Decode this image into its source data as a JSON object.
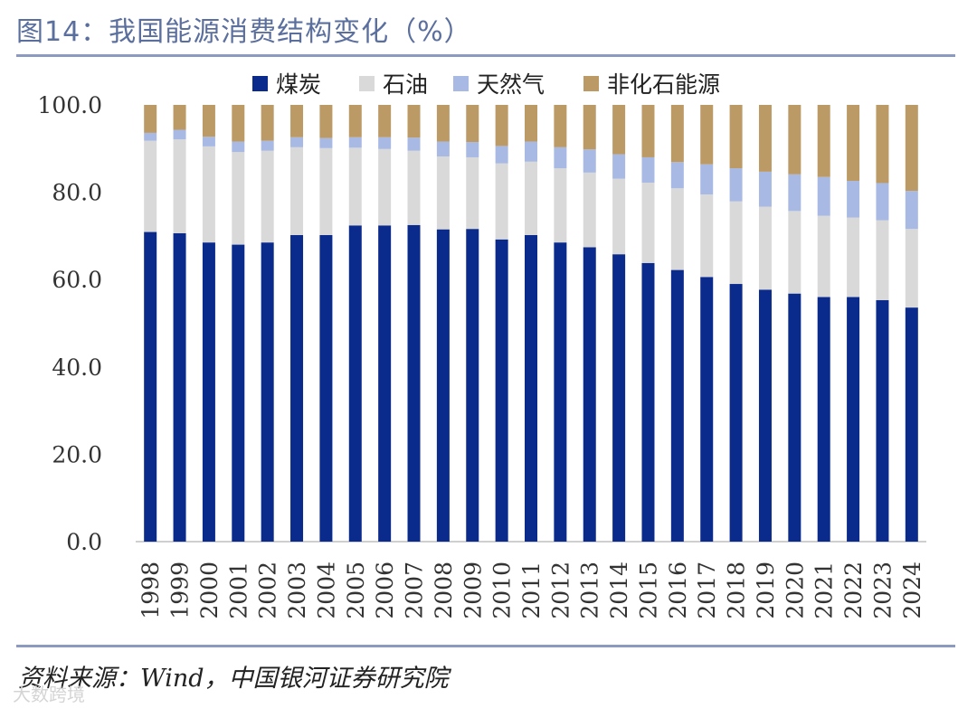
{
  "title": "图14：我国能源消费结构变化（%）",
  "source": "资料来源：Wind，中国银河证券研究院",
  "watermark": "大数跨境",
  "chart_data": {
    "type": "bar",
    "stacked": true,
    "title": "图14：我国能源消费结构变化（%）",
    "xlabel": "",
    "ylabel": "",
    "ylim": [
      0,
      100
    ],
    "yticks": [
      "0.0",
      "20.0",
      "40.0",
      "60.0",
      "80.0",
      "100.0"
    ],
    "legend_position": "top",
    "categories": [
      "1998",
      "1999",
      "2000",
      "2001",
      "2002",
      "2003",
      "2004",
      "2005",
      "2006",
      "2007",
      "2008",
      "2009",
      "2010",
      "2011",
      "2012",
      "2013",
      "2014",
      "2015",
      "2016",
      "2017",
      "2018",
      "2019",
      "2020",
      "2021",
      "2022",
      "2023",
      "2024"
    ],
    "series": [
      {
        "name": "煤炭",
        "color": "#0a2a8c",
        "values": [
          70.9,
          70.6,
          68.5,
          68.0,
          68.5,
          70.2,
          70.2,
          72.4,
          72.4,
          72.5,
          71.5,
          71.6,
          69.2,
          70.2,
          68.5,
          67.4,
          65.8,
          63.8,
          62.2,
          60.6,
          59.0,
          57.7,
          56.8,
          56.0,
          56.0,
          55.3,
          53.6
        ]
      },
      {
        "name": "石油",
        "color": "#d9d9d9",
        "values": [
          20.9,
          21.5,
          22.0,
          21.2,
          21.0,
          20.1,
          19.9,
          17.8,
          17.5,
          17.0,
          16.7,
          16.4,
          17.4,
          16.8,
          17.0,
          17.1,
          17.3,
          18.4,
          18.7,
          18.9,
          18.9,
          19.0,
          18.9,
          18.6,
          18.2,
          18.3,
          18.0
        ]
      },
      {
        "name": "天然气",
        "color": "#a8b9e3",
        "values": [
          1.8,
          2.2,
          2.2,
          2.4,
          2.3,
          2.3,
          2.3,
          2.4,
          2.7,
          3.0,
          3.4,
          3.5,
          4.0,
          4.6,
          4.8,
          5.3,
          5.6,
          5.8,
          6.0,
          6.9,
          7.6,
          8.0,
          8.4,
          8.9,
          8.4,
          8.5,
          8.7
        ]
      },
      {
        "name": "非化石能源",
        "color": "#bb9a66",
        "values": [
          6.4,
          5.7,
          7.3,
          8.4,
          8.2,
          7.4,
          7.6,
          7.4,
          7.4,
          7.5,
          8.4,
          8.5,
          9.4,
          8.4,
          9.7,
          10.2,
          11.3,
          12.0,
          13.1,
          13.6,
          14.5,
          15.3,
          15.9,
          16.5,
          17.4,
          17.9,
          19.7
        ]
      }
    ]
  }
}
